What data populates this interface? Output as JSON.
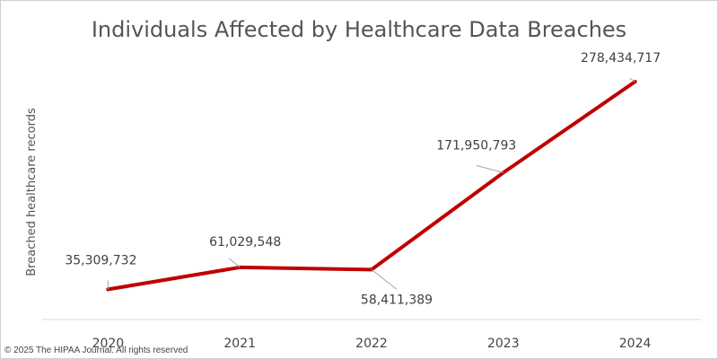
{
  "chart_data": {
    "type": "line",
    "title": "Individuals Affected by Healthcare Data Breaches",
    "xlabel": "",
    "ylabel": "Breached healthcare records",
    "categories": [
      "2020",
      "2021",
      "2022",
      "2023",
      "2024"
    ],
    "series": [
      {
        "values": [
          35309732,
          61029548,
          58411389,
          171950793,
          278434717
        ],
        "data_labels": [
          "35,309,732",
          "61,029,548",
          "58,411,389",
          "171,950,793",
          "278,434,717"
        ]
      }
    ],
    "ylim": [
      0,
      310000000
    ],
    "grid": false,
    "legend": "none",
    "line_color": "#c00000"
  },
  "footer": {
    "copyright": "© 2025 The HIPAA Journal. All rights reserved"
  }
}
